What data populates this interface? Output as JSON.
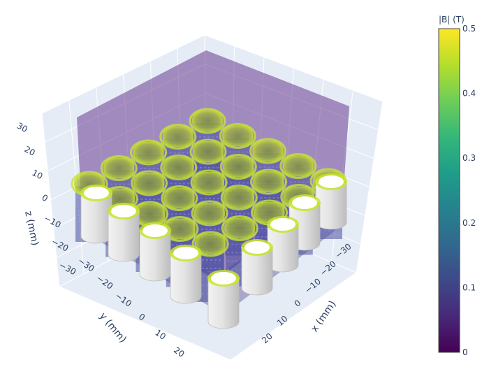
{
  "chart_data": {
    "type": "volume-3d",
    "axes": {
      "x": {
        "title": "x (mm)",
        "ticks": [
          "−30",
          "−20",
          "−10",
          "0",
          "10",
          "20"
        ]
      },
      "y": {
        "title": "y (mm)",
        "ticks": [
          "−30",
          "−20",
          "−10",
          "0",
          "10",
          "20"
        ]
      },
      "z": {
        "title": "z (mm)",
        "ticks": [
          "30",
          "20",
          "10",
          "0",
          "−10",
          "−20",
          "−30"
        ]
      }
    },
    "colorbar": {
      "title": "|B| (T)",
      "colorscale": "viridis",
      "range": [
        0,
        0.5
      ],
      "ticks": [
        "0.5",
        "0.4",
        "0.3",
        "0.2",
        "0.1",
        "0"
      ],
      "colors": [
        "#440154",
        "#482878",
        "#3e4989",
        "#31688e",
        "#26828e",
        "#1f9e89",
        "#35b779",
        "#6ece58",
        "#b5de2b",
        "#fde725"
      ]
    },
    "grid": true,
    "magnet_grid": {
      "rows": 5,
      "cols": 5
    }
  }
}
